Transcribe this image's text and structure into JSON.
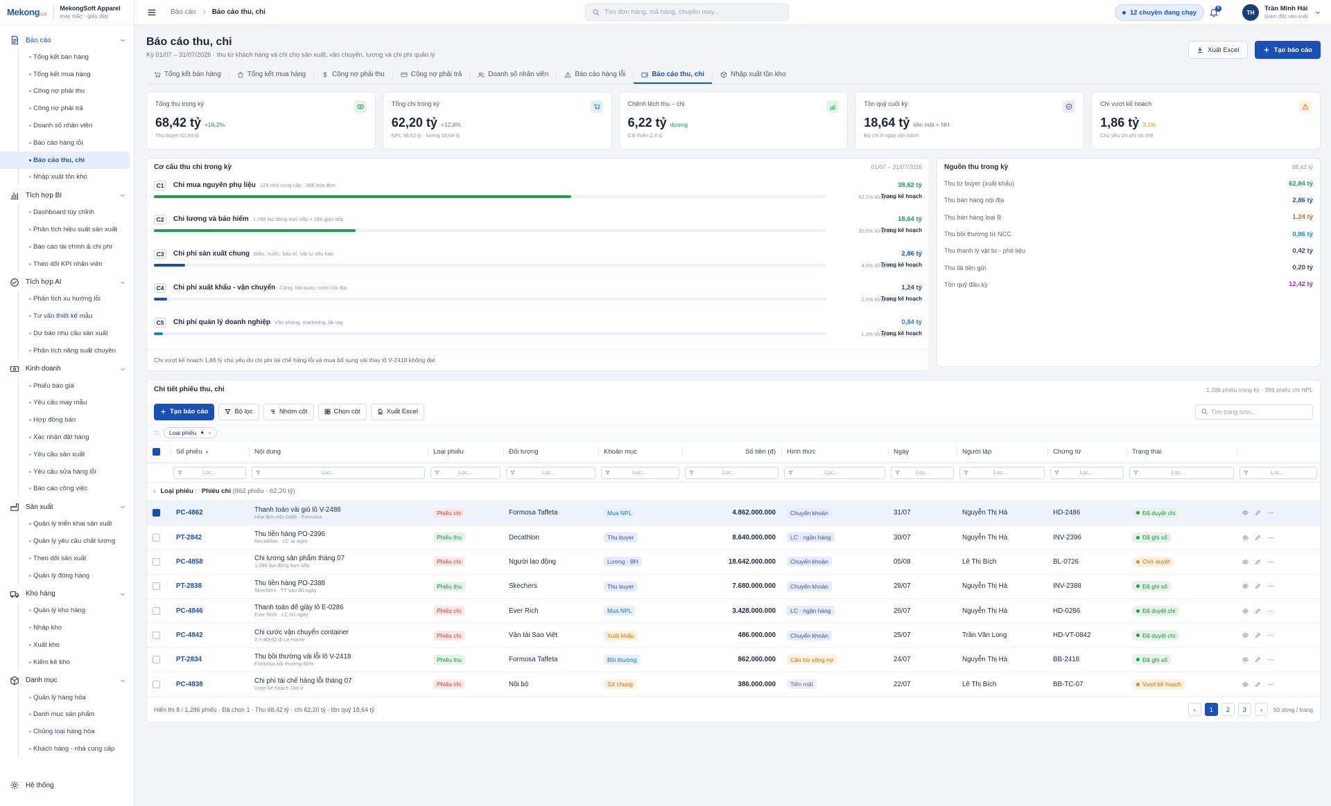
{
  "brand": {
    "logo": "Mekong",
    "logo_suffix": "soft",
    "org_name": "MekongSoft Apparel",
    "org_sub": "may mặc - giày dép"
  },
  "sidebar": {
    "groups": [
      {
        "label": "Báo cáo",
        "icon": "report-icon",
        "items": [
          "Tổng kết bán hàng",
          "Tổng kết mua hàng",
          "Công nợ phải thu",
          "Công nợ phải trả",
          "Doanh số nhân viên",
          "Báo cáo hàng lỗi",
          "Báo cáo thu, chi",
          "Nhập xuất tồn kho"
        ]
      },
      {
        "label": "Tích hợp BI",
        "icon": "bar-chart-icon",
        "items": [
          "Dashboard tùy chỉnh",
          "Phân tích hiệu suất sản xuất",
          "Báo cáo tài chính & chi phí",
          "Theo dõi KPI nhân viên"
        ]
      },
      {
        "label": "Tích hợp AI",
        "icon": "ai-check-icon",
        "items": [
          "Phân tích xu hướng lỗi",
          "Tư vấn thiết kế mẫu",
          "Dự báo nhu cầu sản xuất",
          "Phân tích năng suất chuyền"
        ]
      },
      {
        "label": "Kinh doanh",
        "icon": "money-icon",
        "items": [
          "Phiếu báo giá",
          "Yêu cầu may mẫu",
          "Hợp đồng bán",
          "Xác nhận đặt hàng",
          "Yêu cầu sản xuất",
          "Yêu cầu sửa hàng lỗi",
          "Báo cáo công việc"
        ]
      },
      {
        "label": "Sản xuất",
        "icon": "factory-icon",
        "items": [
          "Quản lý triển khai sản xuất",
          "Quản lý yêu cầu chất lượng",
          "Theo dõi sản xuất",
          "Quản lý đóng hàng"
        ]
      },
      {
        "label": "Kho hàng",
        "icon": "truck-icon",
        "items": [
          "Quản lý kho hàng",
          "Nhập kho",
          "Xuất kho",
          "Kiểm kê kho"
        ]
      },
      {
        "label": "Danh mục",
        "icon": "box-icon",
        "items": [
          "Quản lý hàng hóa",
          "Danh mục sản phẩm",
          "Chủng loại hàng hóa",
          "Khách hàng - nhà cung cấp"
        ]
      }
    ],
    "system": "Hệ thống"
  },
  "topbar": {
    "crumb_root": "Báo cáo",
    "crumb_current": "Báo cáo thu, chi",
    "search_placeholder": "Tìm đơn hàng, mã hàng, chuyền may...",
    "running": "12 chuyền đang chạy",
    "notif_count": "6",
    "user_initials": "TH",
    "user_name": "Trần Minh Hải",
    "user_role": "Giám đốc sản xuất"
  },
  "page": {
    "title": "Báo cáo thu, chi",
    "subtitle": "Kỳ 01/07 – 31/07/2026 · thu từ khách hàng và chi cho sản xuất, vận chuyển, lương và chi phí quản lý",
    "export": "Xuất Excel",
    "create": "Tạo báo cáo"
  },
  "tabs": [
    {
      "label": "Tổng kết bán hàng",
      "icon": "cart-icon"
    },
    {
      "label": "Tổng kết mua hàng",
      "icon": "bag-icon"
    },
    {
      "label": "Công nợ phải thu",
      "icon": "dollar-icon"
    },
    {
      "label": "Công nợ phải trả",
      "icon": "card-icon"
    },
    {
      "label": "Doanh số nhân viên",
      "icon": "users-icon"
    },
    {
      "label": "Báo cáo hàng lỗi",
      "icon": "warning-icon"
    },
    {
      "label": "Báo cáo thu, chi",
      "icon": "wallet-icon",
      "active": true
    },
    {
      "label": "Nhập xuất tồn kho",
      "icon": "cube-icon"
    }
  ],
  "kpis": [
    {
      "label": "Tổng thu trong kỳ",
      "value": "68,42 tỷ",
      "delta": "+16,2%",
      "delta_color": "#1f9e4f",
      "sub": "Thu buyer 62,84 tỷ",
      "icon": "cash-icon",
      "icon_bg": "#e3f5ea",
      "icon_color": "#1f9e4f"
    },
    {
      "label": "Tổng chi trong kỳ",
      "value": "62,20 tỷ",
      "delta": "+12,8%",
      "delta_color": "#6b778a",
      "sub": "NPL 38,62 tỷ · lương 18,64 tỷ",
      "icon": "cart-icon",
      "icon_bg": "#e1f2f9",
      "icon_color": "#1a8ab4"
    },
    {
      "label": "Chênh lệch thu – chi",
      "value": "6,22 tỷ",
      "delta": "dương",
      "delta_color": "#1f9e4f",
      "sub": "Cải thiện 2,4 tỷ",
      "icon": "chart-up-icon",
      "icon_bg": "#e3f5ea",
      "icon_color": "#1f9e4f"
    },
    {
      "label": "Tồn quỹ cuối kỳ",
      "value": "18,64 tỷ",
      "delta": "tiền mặt + NH",
      "delta_color": "#6b778a",
      "sub": "Đủ chi 9 ngày vận hành",
      "icon": "check-circle-icon",
      "icon_bg": "#e7ebfa",
      "icon_color": "#3a4fb4"
    },
    {
      "label": "Chi vượt kế hoạch",
      "value": "1,86 tỷ",
      "delta": "3,1%",
      "delta_color": "#e5881a",
      "sub": "Chủ yếu chi phí tái chế",
      "icon": "warning-icon",
      "icon_bg": "#fdf0dd",
      "icon_color": "#e5881a"
    }
  ],
  "structure": {
    "title": "Cơ cấu thu chi trong kỳ",
    "period": "01/07 – 31/07/2026",
    "status_label": "Trong kế hoạch",
    "rows": [
      {
        "code": "C1",
        "name": "Chi mua nguyên phụ liệu",
        "desc": "124 nhà cung cấp · 386 hóa đơn",
        "value": "38,62 tỷ",
        "value_color": "#1f9e4f",
        "pct": "62,1% tổng chi",
        "share": 0.621,
        "bar_color": "#1f9e4f"
      },
      {
        "code": "C2",
        "name": "Chi lương và bảo hiểm",
        "desc": "1.286 lao động trực tiếp + 186 gián tiếp",
        "value": "18,64 tỷ",
        "value_color": "#1f9e4f",
        "pct": "30,0% tổng chi",
        "share": 0.3,
        "bar_color": "#1f9e4f"
      },
      {
        "code": "C3",
        "name": "Chi phí sản xuất chung",
        "desc": "Điện, nước, bảo trì, vật tư tiêu hao",
        "value": "2,86 tỷ",
        "value_color": "#1a4fb6",
        "pct": "4,6% tổng chi",
        "share": 0.046,
        "bar_color": "#1a4fb6"
      },
      {
        "code": "C4",
        "name": "Chi phí xuất khẩu - vận chuyển",
        "desc": "Cảng, hải quan, cước nội địa",
        "value": "1,24 tỷ",
        "value_color": "#1a4fb6",
        "pct": "2,0% tổng chi",
        "share": 0.02,
        "bar_color": "#1a4fb6"
      },
      {
        "code": "C5",
        "name": "Chi phí quản lý doanh nghiệp",
        "desc": "Văn phòng, marketing, lãi vay",
        "value": "0,84 tỷ",
        "value_color": "#1a8ab4",
        "pct": "1,3% tổng chi",
        "share": 0.013,
        "bar_color": "#1a8ab4"
      }
    ],
    "note": "Chi vượt kế hoạch 1,86 tỷ chủ yếu do chi phí tái chế hàng lỗi và mua bổ sung vải thay lô V-2418 không đạt"
  },
  "sources": {
    "title": "Nguồn thu trong kỳ",
    "total": "68,42 tỷ",
    "rows": [
      {
        "label": "Thu từ buyer (xuất khẩu)",
        "value": "62,84 tỷ",
        "color": "#1f9e4f"
      },
      {
        "label": "Thu bán hàng nội địa",
        "value": "2,86 tỷ",
        "color": "#1a4fb6"
      },
      {
        "label": "Thu bán hàng loại B",
        "value": "1,24 tỷ",
        "color": "#c7720b"
      },
      {
        "label": "Thu bồi thường từ NCC",
        "value": "0,86 tỷ",
        "color": "#1a8ab4"
      },
      {
        "label": "Thu thanh lý vật tư - phế liệu",
        "value": "0,42 tỷ",
        "color": "#3a465a"
      },
      {
        "label": "Thu lãi tiền gửi",
        "value": "0,20 tỷ",
        "color": "#3a465a"
      },
      {
        "label": "Tồn quỹ đầu kỳ",
        "value": "12,42 tỷ",
        "color": "#7a3fc0"
      }
    ]
  },
  "table": {
    "title": "Chi tiết phiếu thu, chi",
    "meta": "1.286 phiếu trong kỳ · 386 phiếu chi NPL",
    "toolbar": {
      "create": "Tạo báo cáo",
      "filter": "Bộ lọc",
      "group": "Nhóm cột",
      "columns": "Chọn cột",
      "export": "Xuất Excel",
      "search": "Tìm trong lưới..."
    },
    "group_chip": "Loại phiếu",
    "filter_placeholder": "Lọc...",
    "headers": [
      "Số phiếu",
      "Nội dung",
      "Loại phiếu",
      "Đối tượng",
      "Khoản mục",
      "Số tiền (đ)",
      "Hình thức",
      "Ngày",
      "Người lập",
      "Chứng từ",
      "Trạng thái"
    ],
    "group_row": {
      "label": "Loại phiếu",
      "value": "Phiếu chi",
      "count": "(862 phiếu · 62,20 tỷ)"
    },
    "rows": [
      {
        "id": "PC-4862",
        "title": "Thanh toán vải gió lô V-2486",
        "desc": "Hóa đơn HD-2486 · Formosa",
        "type": "Phiếu chi",
        "party": "Formosa Taffeta",
        "cat": "Mua NPL",
        "cat_cls": "t-blue",
        "amount": "4.862.000.000",
        "method": "Chuyển khoản",
        "method_cls": "t-indigo",
        "date": "31/07",
        "by": "Nguyễn Thị Hà",
        "doc": "HD-2486",
        "status": "Đã duyệt chi",
        "status_cls": "s-ok",
        "sel": true
      },
      {
        "id": "PT-2842",
        "title": "Thu tiền hàng PO-2396",
        "desc": "Decathlon · LC at sight",
        "type": "Phiếu thu",
        "party": "Decathlon",
        "cat": "Thu buyer",
        "cat_cls": "t-indigo",
        "amount": "8.640.000.000",
        "method": "LC · ngân hàng",
        "method_cls": "t-indigo",
        "date": "30/07",
        "by": "Nguyễn Thị Hà",
        "doc": "INV-2396",
        "status": "Đã ghi sổ",
        "status_cls": "s-ok"
      },
      {
        "id": "PC-4858",
        "title": "Chi lương sản phẩm tháng 07",
        "desc": "1.286 lao động trực tiếp",
        "type": "Phiếu chi",
        "party": "Người lao động",
        "cat": "Lương · BH",
        "cat_cls": "t-indigo",
        "amount": "18.642.000.000",
        "method": "Chuyển khoản",
        "method_cls": "t-indigo",
        "date": "05/08",
        "by": "Lê Thị Bích",
        "doc": "BL-0726",
        "status": "Chờ duyệt",
        "status_cls": "s-wait"
      },
      {
        "id": "PT-2838",
        "title": "Thu tiền hàng PO-2388",
        "desc": "Skechers · TT sau 60 ngày",
        "type": "Phiếu thu",
        "party": "Skechers",
        "cat": "Thu buyer",
        "cat_cls": "t-indigo",
        "amount": "7.680.000.000",
        "method": "Chuyển khoản",
        "method_cls": "t-indigo",
        "date": "28/07",
        "by": "Nguyễn Thị Hà",
        "doc": "INV-2388",
        "status": "Đã ghi sổ",
        "status_cls": "s-ok"
      },
      {
        "id": "PC-4846",
        "title": "Thanh toán đế giày lô E-0286",
        "desc": "Ever Rich · LC 60 ngày",
        "type": "Phiếu chi",
        "party": "Ever Rich",
        "cat": "Mua NPL",
        "cat_cls": "t-blue",
        "amount": "3.428.000.000",
        "method": "LC · ngân hàng",
        "method_cls": "t-indigo",
        "date": "26/07",
        "by": "Nguyễn Thị Hà",
        "doc": "HD-0286",
        "status": "Đã duyệt chi",
        "status_cls": "s-ok"
      },
      {
        "id": "PC-4842",
        "title": "Chi cước vận chuyển container",
        "desc": "2 × 40HQ đi Le Havre",
        "type": "Phiếu chi",
        "party": "Vận tải Sao Việt",
        "cat": "Xuất khẩu",
        "cat_cls": "t-orange",
        "amount": "486.000.000",
        "method": "Chuyển khoản",
        "method_cls": "t-indigo",
        "date": "25/07",
        "by": "Trần Văn Long",
        "doc": "HD-VT-0842",
        "status": "Đã duyệt chi",
        "status_cls": "s-ok"
      },
      {
        "id": "PT-2834",
        "title": "Thu bồi thường vải lỗi lô V-2418",
        "desc": "Formosa bồi thường 60%",
        "type": "Phiếu thu",
        "party": "Formosa Taffeta",
        "cat": "Bồi thường",
        "cat_cls": "t-blue",
        "amount": "862.000.000",
        "method": "Cấn trừ công nợ",
        "method_cls": "t-orange",
        "date": "24/07",
        "by": "Nguyễn Thị Hà",
        "doc": "BB-2418",
        "status": "Đã ghi sổ",
        "status_cls": "s-ok"
      },
      {
        "id": "PC-4838",
        "title": "Chi phí tái chế hàng lỗi tháng 07",
        "desc": "Vượt kế hoạch 186 tr",
        "type": "Phiếu chi",
        "party": "Nội bộ",
        "cat": "SX chung",
        "cat_cls": "t-orange",
        "amount": "386.000.000",
        "method": "Tiền mặt",
        "method_cls": "t-gray",
        "date": "22/07",
        "by": "Lê Thị Bích",
        "doc": "BB-TC-07",
        "status": "Vượt kế hoạch",
        "status_cls": "s-wait"
      }
    ],
    "footer": "Hiển thị 8 / 1.286 phiếu · Đã chọn 1 · Thu 68,42 tỷ · chi 62,20 tỷ · tồn quỹ 18,64 tỷ",
    "pages": [
      "1",
      "2",
      "3"
    ],
    "page_size": "50 dòng / trang"
  }
}
